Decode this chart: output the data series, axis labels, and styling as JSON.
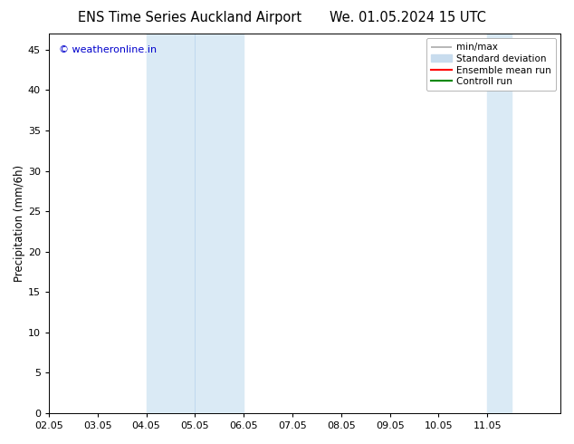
{
  "title_left": "ENS Time Series Auckland Airport",
  "title_right": "We. 01.05.2024 15 UTC",
  "ylabel": "Precipitation (mm/6h)",
  "xlabel": "",
  "ylim": [
    0,
    47
  ],
  "yticks": [
    0,
    5,
    10,
    15,
    20,
    25,
    30,
    35,
    40,
    45
  ],
  "xtick_labels": [
    "02.05",
    "03.05",
    "04.05",
    "05.05",
    "06.05",
    "07.05",
    "08.05",
    "09.05",
    "10.05",
    "11.05"
  ],
  "xlim": [
    0,
    10.5
  ],
  "shaded_regions": [
    {
      "x_start": 2.0,
      "x_end": 4.0
    },
    {
      "x_start": 9.0,
      "x_end": 9.5
    }
  ],
  "shaded_color": "#daeaf5",
  "shaded_divider_color": "#c0d8ee",
  "watermark": "© weatheronline.in",
  "watermark_color": "#0000cc",
  "watermark_fontsize": 8,
  "legend_minmax_color": "#aaaaaa",
  "legend_std_color": "#c8dcee",
  "legend_ensemble_color": "#ff0000",
  "legend_control_color": "#008800",
  "background_color": "#ffffff",
  "plot_bg_color": "#ffffff",
  "title_fontsize": 10.5,
  "tick_fontsize": 8,
  "ylabel_fontsize": 8.5,
  "legend_fontsize": 7.5
}
